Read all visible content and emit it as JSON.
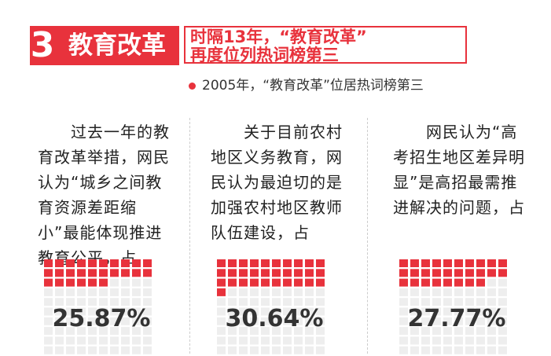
{
  "header": {
    "number": "3",
    "tag": "教育改革",
    "title_lines": [
      "时隔13年，“教育改革”",
      "再度位列热词榜第三"
    ],
    "subtitle": "2005年，“教育改革”位居热词榜第三"
  },
  "columns": [
    {
      "text": "过去一年的教育改革举措，网民认为“城乡之间教育资源差距缩小”最能体现推进教育公平，占",
      "value": 25.87,
      "label": "25.87%"
    },
    {
      "text": "关于目前农村地区义务教育，网民认为最迫切的是加强农村地区教师队伍建设，占",
      "value": 30.64,
      "label": "30.64%"
    },
    {
      "text": "网民认为“高考招生地区差异明显”是高招最需推进解决的问题，占",
      "value": 27.77,
      "label": "27.77%"
    }
  ]
}
